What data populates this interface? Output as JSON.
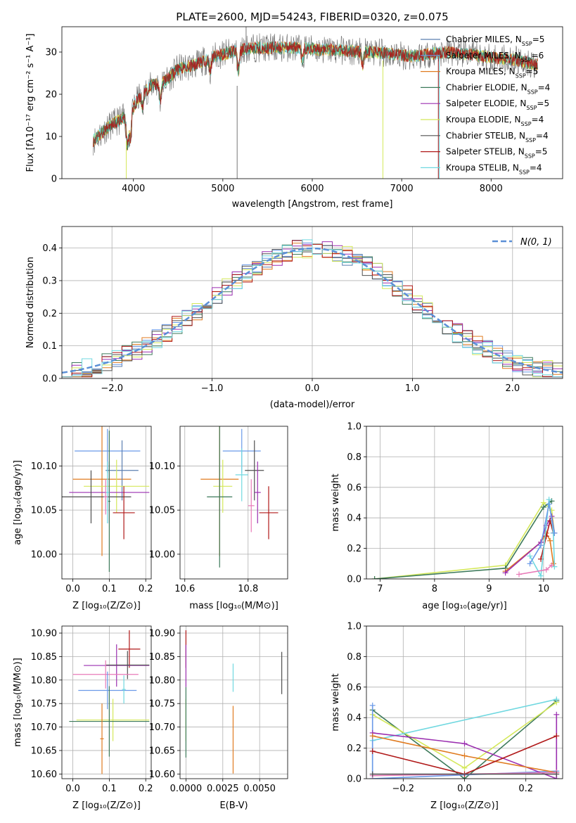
{
  "figure": {
    "title": "PLATE=2600, MJD=54243, FIBERID=0320, z=0.075"
  },
  "colors": {
    "Chabrier MILES": "#5b7fb0",
    "Salpeter MILES": "#6a9ae8",
    "Kroupa MILES": "#e07b20",
    "Chabrier ELODIE": "#3d7a5a",
    "Salpeter ELODIE": "#9b2fb0",
    "Kroupa ELODIE": "#d4e85a",
    "Chabrier STELIB": "#505050",
    "Salpeter STELIB": "#b01818",
    "Kroupa STELIB": "#70d8e0",
    "pink": "#e87ab8",
    "normal": "#5b8fd6",
    "data": "#6b6b6b"
  },
  "legend_spectrum": [
    "Chabrier MILES, N_SSP=5",
    "Salpeter MILES, N_SSP=6",
    "Kroupa MILES, N_SSP=5",
    "Chabrier ELODIE, N_SSP=4",
    "Salpeter ELODIE, N_SSP=5",
    "Kroupa ELODIE, N_SSP=4",
    "Chabrier STELIB, N_SSP=4",
    "Salpeter STELIB, N_SSP=5",
    "Kroupa STELIB, N_SSP=4"
  ],
  "legend_residual": "N(0, 1)",
  "chart_data": [
    {
      "id": "spectrum",
      "type": "line",
      "xlabel": "wavelength [Angstrom, rest frame]",
      "ylabel": "Flux [f_λ 10^-17 erg cm^-2 s^-1 A^-1]",
      "xlim": [
        3200,
        8800
      ],
      "ylim": [
        0,
        36
      ],
      "xticks": [
        4000,
        5000,
        6000,
        7000,
        8000
      ],
      "yticks": [
        0,
        10,
        20,
        30
      ],
      "continuum_x": [
        3550,
        3700,
        3850,
        3950,
        4050,
        4200,
        4350,
        4500,
        4700,
        4900,
        5100,
        5300,
        5500,
        5700,
        5900,
        6100,
        6300,
        6500,
        6700,
        6900,
        7100,
        7300,
        7500,
        7700,
        7900,
        8100,
        8300,
        8500
      ],
      "continuum_y": [
        9,
        12,
        14,
        15,
        19,
        22,
        23,
        26,
        27,
        29,
        30,
        31,
        31,
        31,
        31,
        30.5,
        30.5,
        30,
        30,
        29.5,
        29,
        29.5,
        30,
        29.5,
        29,
        28.5,
        28,
        27
      ]
    },
    {
      "id": "residuals",
      "type": "line",
      "xlabel": "(data-model)/error",
      "ylabel": "Normed distribution",
      "xlim": [
        -2.5,
        2.5
      ],
      "ylim": [
        0,
        0.466
      ],
      "xticks": [
        -2,
        -1,
        0,
        1,
        2
      ],
      "yticks": [
        0.0,
        0.1,
        0.2,
        0.3,
        0.4
      ]
    },
    {
      "id": "age_vs_Z",
      "type": "scatter",
      "xlabel": "Z [log10(Z/Z⊙)]",
      "ylabel": "age [log10(age/yr)]",
      "xlim": [
        -0.03,
        0.215
      ],
      "ylim": [
        9.972,
        10.145
      ],
      "xticks": [
        0.0,
        0.1,
        0.2
      ],
      "yticks": [
        10.0,
        10.05,
        10.1
      ],
      "points": [
        {
          "color": "Salpeter MILES",
          "x": 0.095,
          "xerr": 0.09,
          "y": 10.117,
          "yerr": 0.025
        },
        {
          "color": "Kroupa MILES",
          "x": 0.08,
          "xerr": 0.08,
          "y": 10.085,
          "yerr": 0.087
        },
        {
          "color": "Chabrier MILES",
          "x": 0.135,
          "xerr": 0.045,
          "y": 10.095,
          "yerr": 0.034
        },
        {
          "color": "Kroupa ELODIE",
          "x": 0.12,
          "xerr": 0.09,
          "y": 10.077,
          "yerr": 0.03
        },
        {
          "color": "Salpeter ELODIE",
          "x": 0.1,
          "xerr": 0.11,
          "y": 10.07,
          "yerr": 0.035
        },
        {
          "color": "Chabrier STELIB",
          "x": 0.05,
          "xerr": 0.11,
          "y": 10.065,
          "yerr": 0.03
        },
        {
          "color": "Salpeter STELIB",
          "x": 0.14,
          "xerr": 0.03,
          "y": 10.047,
          "yerr": 0.03
        },
        {
          "color": "Chabrier ELODIE",
          "x": 0.1,
          "xerr": 0.003,
          "y": 10.06,
          "yerr": 0.08
        },
        {
          "color": "Kroupa STELIB",
          "x": 0.095,
          "xerr": 0.005,
          "y": 10.07,
          "yerr": 0.035
        },
        {
          "color": "pink",
          "x": 0.09,
          "xerr": 0.005,
          "y": 10.065,
          "yerr": 0.02
        }
      ]
    },
    {
      "id": "age_vs_mass",
      "type": "scatter",
      "xlabel": "mass [log10(M/M⊙)]",
      "ylabel": "",
      "xlim": [
        10.585,
        10.925
      ],
      "ylim": [
        9.972,
        10.145
      ],
      "xticks": [
        10.6,
        10.8
      ],
      "yticks": [
        10.0,
        10.05,
        10.1
      ],
      "points": [
        {
          "color": "Salpeter MILES",
          "x": 10.78,
          "xerr": 0.06,
          "y": 10.117,
          "yerr": 0.025
        },
        {
          "color": "Kroupa MILES",
          "x": 10.71,
          "xerr": 0.06,
          "y": 10.085,
          "yerr": 0.087
        },
        {
          "color": "Chabrier STELIB",
          "x": 10.82,
          "xerr": 0.03,
          "y": 10.095,
          "yerr": 0.034
        },
        {
          "color": "Kroupa ELODIE",
          "x": 10.72,
          "xerr": 0.03,
          "y": 10.077,
          "yerr": 0.03
        },
        {
          "color": "Chabrier ELODIE",
          "x": 10.71,
          "xerr": 0.04,
          "y": 10.065,
          "yerr": 0.08
        },
        {
          "color": "Salpeter STELIB",
          "x": 10.865,
          "xerr": 0.03,
          "y": 10.047,
          "yerr": 0.03
        },
        {
          "color": "Salpeter ELODIE",
          "x": 10.83,
          "xerr": 0.01,
          "y": 10.07,
          "yerr": 0.035
        },
        {
          "color": "Kroupa STELIB",
          "x": 10.78,
          "xerr": 0.02,
          "y": 10.09,
          "yerr": 0.03
        },
        {
          "color": "pink",
          "x": 10.81,
          "xerr": 0.01,
          "y": 10.055,
          "yerr": 0.03
        }
      ]
    },
    {
      "id": "mass_vs_Z",
      "type": "scatter",
      "xlabel": "Z [log10(Z/Z⊙)]",
      "ylabel": "mass [log10(M/M⊙)]",
      "xlim": [
        -0.03,
        0.215
      ],
      "ylim": [
        10.59,
        10.915
      ],
      "xticks": [
        0.0,
        0.1,
        0.2
      ],
      "yticks": [
        10.6,
        10.65,
        10.7,
        10.75,
        10.8,
        10.85,
        10.9
      ],
      "points": [
        {
          "color": "Salpeter STELIB",
          "x": 0.155,
          "xerr": 0.03,
          "y": 10.866,
          "yerr": 0.04
        },
        {
          "color": "Salpeter ELODIE",
          "x": 0.12,
          "xerr": 0.09,
          "y": 10.831,
          "yerr": 0.045
        },
        {
          "color": "Chabrier STELIB",
          "x": 0.15,
          "xerr": 0.06,
          "y": 10.832,
          "yerr": 0.03
        },
        {
          "color": "pink",
          "x": 0.09,
          "xerr": 0.09,
          "y": 10.812,
          "yerr": 0.03
        },
        {
          "color": "Salpeter MILES",
          "x": 0.095,
          "xerr": 0.08,
          "y": 10.778,
          "yerr": 0.04
        },
        {
          "color": "Kroupa STELIB",
          "x": 0.14,
          "xerr": 0.005,
          "y": 10.78,
          "yerr": 0.03
        },
        {
          "color": "Kroupa ELODIE",
          "x": 0.11,
          "xerr": 0.1,
          "y": 10.715,
          "yerr": 0.045
        },
        {
          "color": "Chabrier ELODIE",
          "x": 0.1,
          "xerr": 0.11,
          "y": 10.712,
          "yerr": 0.075
        },
        {
          "color": "Kroupa MILES",
          "x": 0.08,
          "xerr": 0.005,
          "y": 10.675,
          "yerr": 0.075
        }
      ]
    },
    {
      "id": "mass_vs_EBV",
      "type": "scatter",
      "xlabel": "E(B-V)",
      "ylabel": "",
      "xlim": [
        -0.0004,
        0.0069
      ],
      "ylim": [
        10.59,
        10.915
      ],
      "xticks": [
        0.0,
        0.0025,
        0.005
      ],
      "xticklabels": [
        "0.0000",
        "0.0025",
        "0.0050"
      ],
      "yticks": [
        10.6,
        10.65,
        10.7,
        10.75,
        10.8,
        10.85,
        10.9
      ],
      "points": [
        {
          "color": "Salpeter STELIB",
          "x": 0.0,
          "xerr": 0.0,
          "y": 10.866,
          "yerr": 0.04
        },
        {
          "color": "Salpeter ELODIE",
          "x": 0.0,
          "xerr": 0.0,
          "y": 10.83,
          "yerr": 0.045
        },
        {
          "color": "Kroupa ELODIE",
          "x": 0.0,
          "xerr": 0.0,
          "y": 10.715,
          "yerr": 0.045
        },
        {
          "color": "Chabrier ELODIE",
          "x": 0.0,
          "xerr": 0.0,
          "y": 10.71,
          "yerr": 0.075
        },
        {
          "color": "Kroupa STELIB",
          "x": 0.0032,
          "xerr": 0.0,
          "y": 10.805,
          "yerr": 0.03
        },
        {
          "color": "Kroupa MILES",
          "x": 0.0032,
          "xerr": 0.0,
          "y": 10.673,
          "yerr": 0.072
        },
        {
          "color": "Chabrier STELIB",
          "x": 0.0065,
          "xerr": 0.0,
          "y": 10.815,
          "yerr": 0.045
        }
      ]
    },
    {
      "id": "mass_weight_vs_age",
      "type": "line",
      "xlabel": "age [log10(age/yr)]",
      "ylabel": "mass weight",
      "xlim": [
        6.75,
        10.35
      ],
      "ylim": [
        0,
        1
      ],
      "xticks": [
        7,
        8,
        9,
        10
      ],
      "yticks": [
        0.0,
        0.2,
        0.4,
        0.6,
        0.8,
        1.0
      ],
      "series": [
        {
          "color": "Kroupa ELODIE",
          "x": [
            6.9,
            9.3,
            10.0,
            10.15,
            10.2
          ],
          "y": [
            0.0,
            0.09,
            0.5,
            0.45,
            0.3
          ]
        },
        {
          "color": "Chabrier ELODIE",
          "x": [
            6.9,
            9.3,
            10.0,
            10.15
          ],
          "y": [
            0.0,
            0.07,
            0.47,
            0.51
          ]
        },
        {
          "color": "Kroupa MILES",
          "x": [
            9.3,
            9.95,
            10.05,
            10.12,
            10.18
          ],
          "y": [
            0.05,
            0.24,
            0.3,
            0.25,
            0.1
          ]
        },
        {
          "color": "Salpeter ELODIE",
          "x": [
            9.3,
            9.95,
            10.05,
            10.15,
            10.2
          ],
          "y": [
            0.04,
            0.24,
            0.35,
            0.41,
            0.3
          ]
        },
        {
          "color": "Salpeter STELIB",
          "x": [
            9.95,
            10.05,
            10.12,
            10.18
          ],
          "y": [
            0.13,
            0.28,
            0.38,
            0.3
          ]
        },
        {
          "color": "Kroupa STELIB",
          "x": [
            9.75,
            9.95,
            10.1,
            10.18,
            10.2
          ],
          "y": [
            0.15,
            0.02,
            0.52,
            0.3,
            0.08
          ]
        },
        {
          "color": "pink",
          "x": [
            9.55,
            10.05,
            10.15
          ],
          "y": [
            0.03,
            0.06,
            0.09
          ]
        },
        {
          "color": "Salpeter MILES",
          "x": [
            9.75,
            9.95,
            10.1,
            10.2
          ],
          "y": [
            0.1,
            0.22,
            0.49,
            0.3
          ]
        }
      ]
    },
    {
      "id": "mass_weight_vs_Z",
      "type": "line",
      "xlabel": "Z [log10(Z/Z⊙)]",
      "ylabel": "mass weight",
      "xlim": [
        -0.32,
        0.32
      ],
      "ylim": [
        0,
        1
      ],
      "xticks": [
        -0.2,
        0.0,
        0.2
      ],
      "yticks": [
        0.0,
        0.2,
        0.4,
        0.6,
        0.8,
        1.0
      ],
      "series": [
        {
          "color": "Chabrier ELODIE",
          "x": [
            -0.3,
            0.0,
            0.3
          ],
          "y": [
            0.45,
            0.0,
            0.51
          ]
        },
        {
          "color": "Kroupa ELODIE",
          "x": [
            -0.3,
            0.0,
            0.3
          ],
          "y": [
            0.42,
            0.07,
            0.5
          ]
        },
        {
          "color": "Kroupa STELIB",
          "x": [
            -0.3,
            -0.3,
            0.3
          ],
          "y": [
            0.0,
            0.25,
            0.52
          ]
        },
        {
          "color": "Salpeter MILES",
          "x": [
            -0.3,
            -0.3,
            0.3
          ],
          "y": [
            0.48,
            0.0,
            0.05
          ]
        },
        {
          "color": "Salpeter ELODIE",
          "x": [
            -0.3,
            0.0,
            0.3,
            0.3
          ],
          "y": [
            0.3,
            0.23,
            0.0,
            0.42
          ]
        },
        {
          "color": "Kroupa MILES",
          "x": [
            -0.3,
            0.0,
            0.3
          ],
          "y": [
            0.28,
            0.15,
            0.04
          ]
        },
        {
          "color": "Salpeter STELIB",
          "x": [
            -0.3,
            0.0,
            0.3
          ],
          "y": [
            0.18,
            0.03,
            0.28
          ]
        },
        {
          "color": "pink",
          "x": [
            -0.3,
            0.3
          ],
          "y": [
            0.02,
            0.04
          ]
        },
        {
          "color": "Chabrier STELIB",
          "x": [
            -0.3,
            0.3
          ],
          "y": [
            0.03,
            0.03
          ]
        }
      ]
    }
  ]
}
